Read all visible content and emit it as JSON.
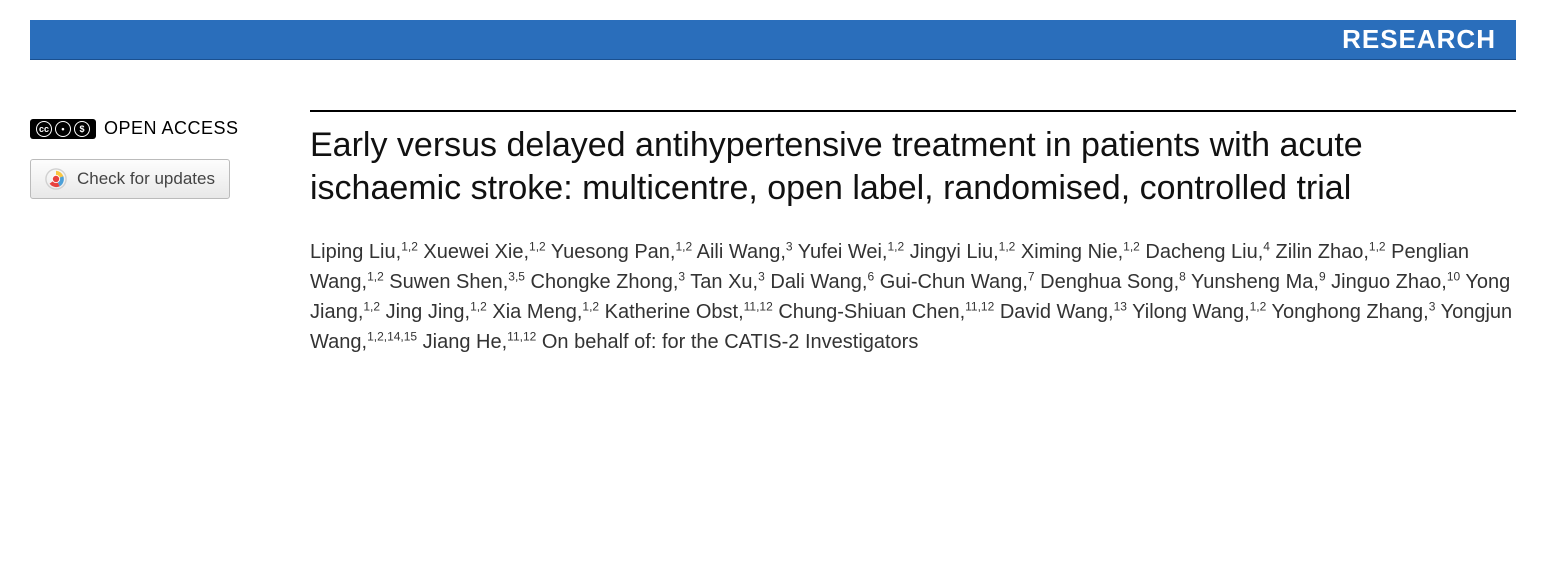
{
  "header": {
    "section_label": "RESEARCH",
    "bar_color": "#2a6ebb",
    "text_color": "#ffffff"
  },
  "badges": {
    "open_access_label": "OPEN ACCESS",
    "cc_text": "cc",
    "check_updates_label": "Check for updates"
  },
  "article": {
    "title": "Early versus delayed antihypertensive treatment in patients with acute ischaemic stroke: multicentre, open label, randomised, controlled trial",
    "title_fontsize": 34,
    "title_color": "#111111"
  },
  "authors": [
    {
      "name": "Liping Liu",
      "affil": "1,2"
    },
    {
      "name": "Xuewei Xie",
      "affil": "1,2"
    },
    {
      "name": "Yuesong Pan",
      "affil": "1,2"
    },
    {
      "name": "Aili Wang",
      "affil": "3"
    },
    {
      "name": "Yufei Wei",
      "affil": "1,2"
    },
    {
      "name": "Jingyi Liu",
      "affil": "1,2"
    },
    {
      "name": "Ximing Nie",
      "affil": "1,2"
    },
    {
      "name": "Dacheng Liu",
      "affil": "4"
    },
    {
      "name": "Zilin Zhao",
      "affil": "1,2"
    },
    {
      "name": "Penglian Wang",
      "affil": "1,2"
    },
    {
      "name": "Suwen Shen",
      "affil": "3,5"
    },
    {
      "name": "Chongke Zhong",
      "affil": "3"
    },
    {
      "name": "Tan Xu",
      "affil": "3"
    },
    {
      "name": "Dali Wang",
      "affil": "6"
    },
    {
      "name": "Gui-Chun Wang",
      "affil": "7"
    },
    {
      "name": "Denghua Song",
      "affil": "8"
    },
    {
      "name": "Yunsheng Ma",
      "affil": "9"
    },
    {
      "name": "Jinguo Zhao",
      "affil": "10"
    },
    {
      "name": "Yong Jiang",
      "affil": "1,2"
    },
    {
      "name": "Jing Jing",
      "affil": "1,2"
    },
    {
      "name": "Xia Meng",
      "affil": "1,2"
    },
    {
      "name": "Katherine Obst",
      "affil": "11,12"
    },
    {
      "name": "Chung-Shiuan Chen",
      "affil": "11,12"
    },
    {
      "name": "David Wang",
      "affil": "13"
    },
    {
      "name": "Yilong Wang",
      "affil": "1,2"
    },
    {
      "name": "Yonghong Zhang",
      "affil": "3"
    },
    {
      "name": "Yongjun Wang",
      "affil": "1,2,14,15"
    },
    {
      "name": "Jiang He",
      "affil": "11,12"
    }
  ],
  "authors_suffix": "On behalf of: for the CATIS-2 Investigators",
  "colors": {
    "background": "#ffffff",
    "rule": "#000000",
    "button_border": "#bbbbbb",
    "button_text": "#444444"
  }
}
